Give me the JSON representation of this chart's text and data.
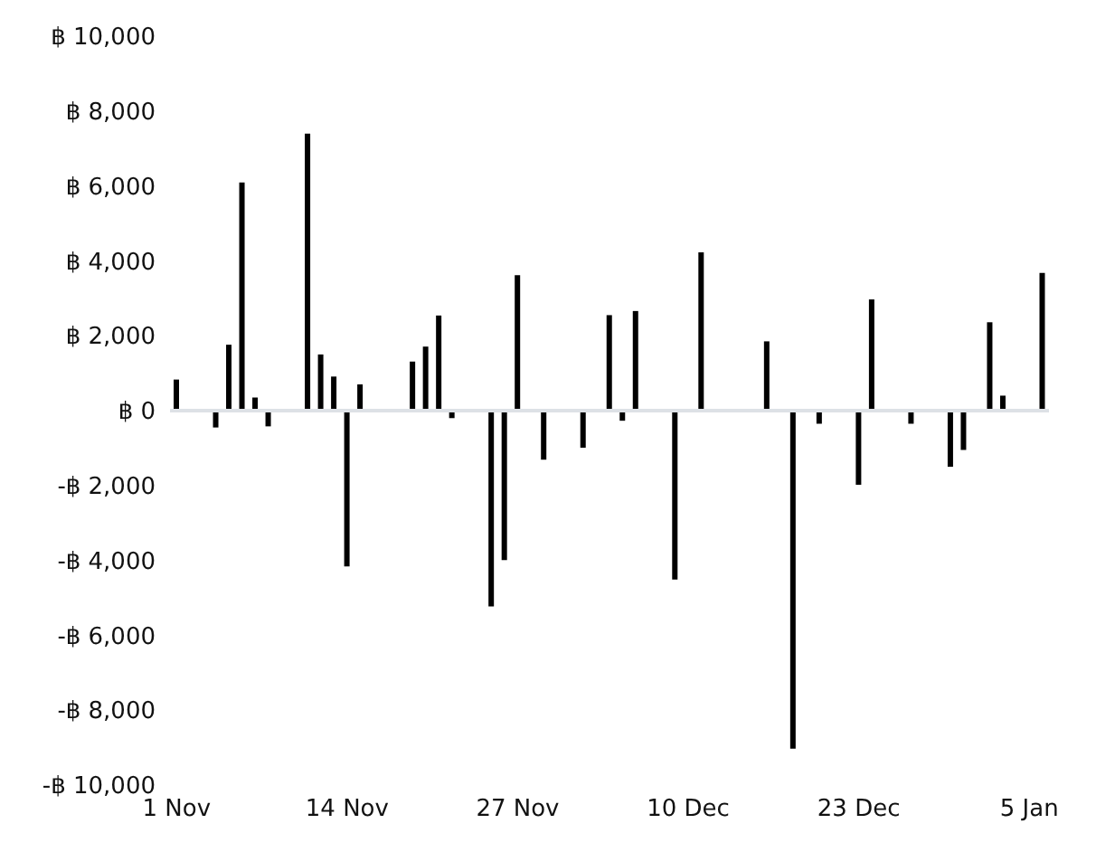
{
  "chart_data": {
    "type": "bar",
    "categories": [
      "1 Nov",
      null,
      null,
      null,
      null,
      null,
      null,
      null,
      null,
      null,
      null,
      null,
      null,
      "14 Nov",
      null,
      null,
      null,
      null,
      null,
      null,
      null,
      null,
      null,
      null,
      null,
      null,
      "27 Nov",
      null,
      null,
      null,
      null,
      null,
      null,
      null,
      null,
      null,
      null,
      null,
      null,
      "10 Dec",
      null,
      null,
      null,
      null,
      null,
      null,
      null,
      null,
      null,
      null,
      null,
      null,
      "23 Dec",
      null,
      null,
      null,
      null,
      null,
      null,
      null,
      null,
      null,
      null,
      null,
      null,
      "5 Jan",
      null
    ],
    "values": [
      830,
      null,
      null,
      -450,
      1760,
      6090,
      350,
      -420,
      null,
      null,
      7400,
      1500,
      910,
      -4160,
      700,
      null,
      null,
      null,
      1310,
      1710,
      2540,
      -200,
      null,
      null,
      -5230,
      -3990,
      3620,
      null,
      -1310,
      null,
      null,
      -990,
      null,
      2550,
      -270,
      2660,
      null,
      null,
      -4510,
      null,
      4230,
      null,
      null,
      null,
      null,
      1850,
      null,
      -9030,
      null,
      -350,
      null,
      null,
      -1980,
      2970,
      null,
      null,
      -350,
      null,
      null,
      -1500,
      -1050,
      null,
      2360,
      400,
      null,
      null,
      3680
    ],
    "color": "#000000",
    "ylim": [
      -10000,
      10000
    ],
    "yticks": [
      {
        "value": -10000,
        "label": "-฿ 10,000"
      },
      {
        "value": -8000,
        "label": "-฿ 8,000"
      },
      {
        "value": -6000,
        "label": "-฿ 6,000"
      },
      {
        "value": -4000,
        "label": "-฿ 4,000"
      },
      {
        "value": -2000,
        "label": "-฿ 2,000"
      },
      {
        "value": 0,
        "label": "฿ 0"
      },
      {
        "value": 2000,
        "label": "฿ 2,000"
      },
      {
        "value": 4000,
        "label": "฿ 4,000"
      },
      {
        "value": 6000,
        "label": "฿ 6,000"
      },
      {
        "value": 8000,
        "label": "฿ 8,000"
      },
      {
        "value": 10000,
        "label": "฿ 10,000"
      }
    ],
    "ref_lines": [
      {
        "axis": "y",
        "value": 0,
        "color": "#dde1e6"
      }
    ],
    "grid": false,
    "legend": false
  }
}
